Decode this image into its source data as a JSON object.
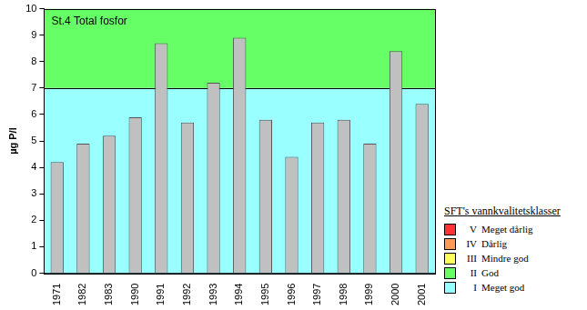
{
  "chart_data": {
    "type": "bar",
    "title": "St.4 Total fosfor",
    "y_label": "µg P/l",
    "categories": [
      "1971",
      "1982",
      "1983",
      "1990",
      "1991",
      "1992",
      "1993",
      "1994",
      "1995",
      "1996",
      "1997",
      "1998",
      "1999",
      "2000",
      "2001"
    ],
    "values": [
      4.2,
      4.9,
      5.2,
      5.9,
      8.7,
      5.7,
      7.2,
      8.9,
      5.8,
      4.4,
      5.7,
      5.8,
      4.9,
      8.4,
      6.4
    ],
    "color": "#c0c0c0",
    "ylim": [
      0,
      10
    ],
    "yticks": [
      0,
      1,
      2,
      3,
      4,
      5,
      6,
      7,
      8,
      9,
      10
    ],
    "grid": false,
    "legend_title": "SFT's vannkvalitetsklasser",
    "classes": [
      {
        "code": "V",
        "name": "Meget dårlig",
        "color": "#ff3333"
      },
      {
        "code": "IV",
        "name": "Dårlig",
        "color": "#ff9955"
      },
      {
        "code": "III",
        "name": "Mindre god",
        "color": "#ffff55"
      },
      {
        "code": "II",
        "name": "God",
        "color": "#66ff66",
        "range": [
          7,
          10
        ]
      },
      {
        "code": "I",
        "name": "Meget god",
        "color": "#99ffff",
        "range": [
          0,
          7
        ]
      }
    ]
  }
}
